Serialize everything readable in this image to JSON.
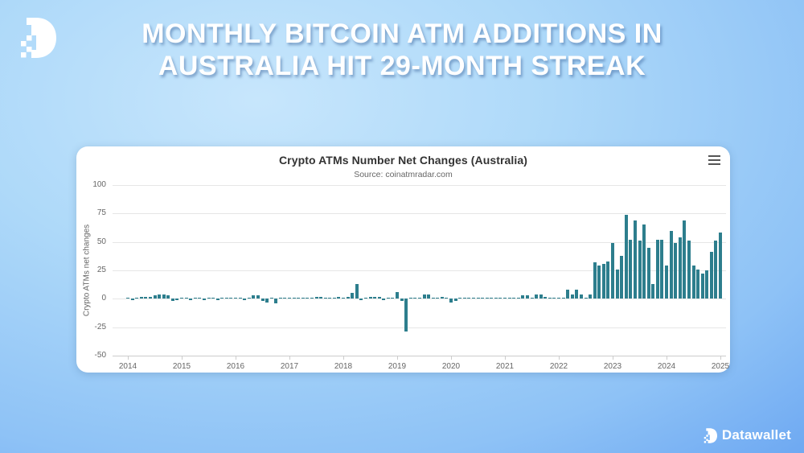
{
  "page": {
    "title_line1": "MONTHLY BITCOIN ATM ADDITIONS IN",
    "title_line2": "AUSTRALIA HIT 29-MONTH STREAK"
  },
  "brand": {
    "name": "Datawallet"
  },
  "icons": {
    "header_logo": "datawallet-d-logo",
    "menu": "hamburger-menu-icon",
    "footer_logo": "datawallet-d-logo"
  },
  "colors": {
    "bar": "#2d7e8d",
    "background_light": "#c7e6fc",
    "background_dark": "#4288ea",
    "card": "#ffffff",
    "grid": "#e6e6e6",
    "axis": "#cccccc",
    "title_text": "#333333",
    "muted_text": "#666666"
  },
  "chart_data": {
    "type": "bar",
    "title": "Crypto ATMs Number Net Changes (Australia)",
    "subtitle": "Source: coinatmradar.com",
    "ylabel": "Crypto ATMs net changes",
    "xlabel": "",
    "ylim": [
      -50,
      100
    ],
    "y_ticks": [
      100,
      75,
      50,
      25,
      0,
      -25,
      -50
    ],
    "x_tick_years": [
      2014,
      2015,
      2016,
      2017,
      2018,
      2019,
      2020,
      2021,
      2022,
      2023,
      2024,
      2025
    ],
    "grid": true,
    "legend": "none",
    "start_month": "2014-01",
    "end_month": "2025-01",
    "monthly_values": [
      0,
      -1,
      1,
      2,
      2,
      2,
      3,
      4,
      4,
      3,
      -2,
      -1,
      1,
      0,
      -1,
      0,
      1,
      -1,
      0,
      1,
      -1,
      0,
      1,
      0,
      1,
      0,
      -1,
      1,
      3,
      3,
      -2,
      -3,
      0,
      -4,
      0,
      0,
      0,
      1,
      0,
      0,
      0,
      0,
      2,
      2,
      1,
      1,
      1,
      2,
      1,
      2,
      5,
      13,
      -1,
      0,
      2,
      2,
      2,
      -1,
      0,
      0,
      6,
      -2,
      -29,
      0,
      1,
      0,
      4,
      4,
      1,
      0,
      2,
      1,
      -3,
      -2,
      1,
      1,
      0,
      1,
      1,
      0,
      1,
      0,
      0,
      1,
      0,
      0,
      1,
      0,
      3,
      3,
      1,
      4,
      4,
      2,
      0,
      1,
      1,
      1,
      8,
      4,
      8,
      4,
      1,
      4,
      32,
      29,
      31,
      33,
      49,
      26,
      38,
      74,
      52,
      69,
      51,
      65,
      45,
      13,
      52,
      52,
      29,
      60,
      49,
      54,
      69,
      51,
      29,
      26,
      22,
      25,
      41,
      51,
      58
    ]
  }
}
